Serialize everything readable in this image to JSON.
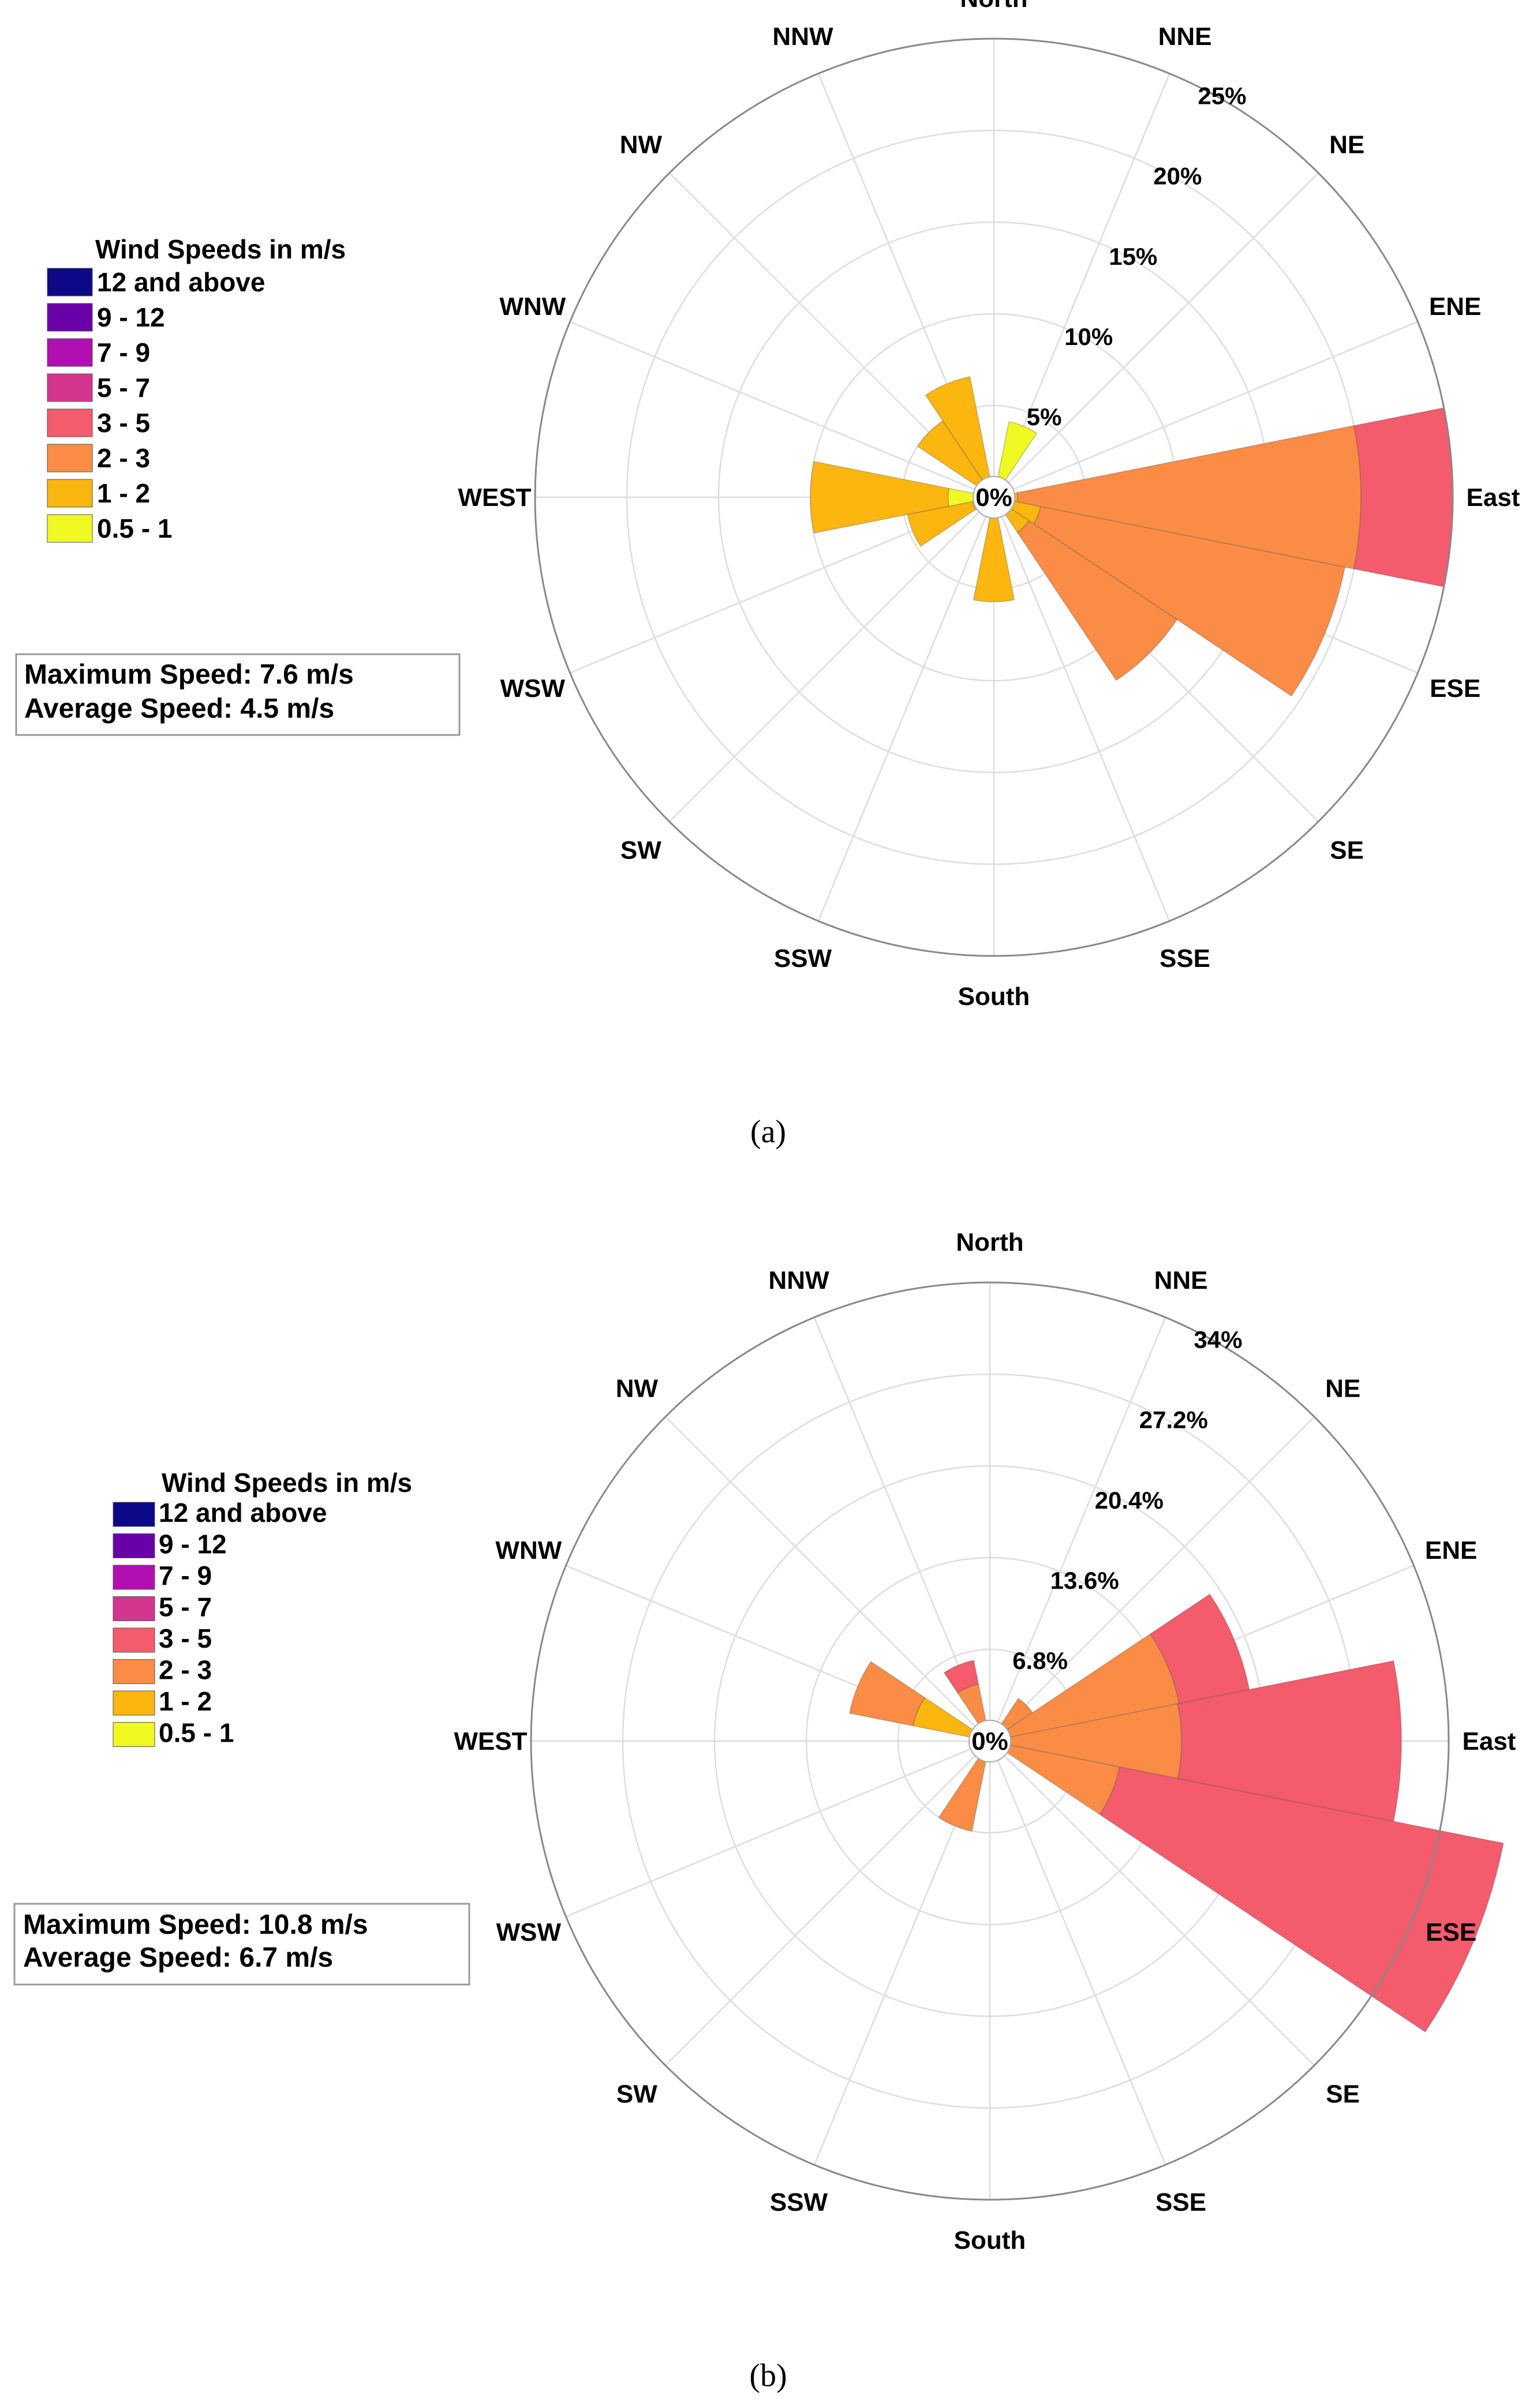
{
  "chart_data": [
    {
      "type": "wind-rose",
      "panel_label": "a",
      "caption": "(a)",
      "directions": [
        "North",
        "NNE",
        "NE",
        "ENE",
        "East",
        "ESE",
        "SE",
        "SSE",
        "South",
        "SSW",
        "SW",
        "WSW",
        "WEST",
        "WNW",
        "NW",
        "NNW"
      ],
      "direction_angles_deg": [
        0,
        22.5,
        45,
        67.5,
        90,
        112.5,
        135,
        157.5,
        180,
        202.5,
        225,
        247.5,
        270,
        292.5,
        315,
        337.5
      ],
      "radial_max": 25,
      "radial_ticks": [
        5,
        10,
        15,
        20,
        25
      ],
      "radial_tick_labels": [
        "5%",
        "10%",
        "15%",
        "20%",
        "25%"
      ],
      "center_label": "0%",
      "legend": {
        "title": "Wind Speeds in m/s",
        "bins": [
          {
            "label": "12 and above",
            "color": "#0d0887"
          },
          {
            "label": "9 - 12",
            "color": "#6a00a8"
          },
          {
            "label": "7 - 9",
            "color": "#b12a90"
          },
          {
            "label": "5 - 7",
            "color": "#e16462"
          },
          {
            "label": "3 - 5",
            "color": "#f2576a"
          },
          {
            "label": "2 - 3",
            "color": "#fb8c45"
          },
          {
            "label": "1 - 2",
            "color": "#fcb610"
          },
          {
            "label": "0.5 - 1",
            "color": "#f0f921"
          }
        ],
        "bin_colors_swatch": [
          "#0d0887",
          "#6a00a8",
          "#b10fb1",
          "#d3358f",
          "#f45b6c",
          "#fb8c45",
          "#fcb610",
          "#f0f921"
        ]
      },
      "stats": [
        "Maximum Speed: 7.6 m/s",
        "Average Speed: 4.5 m/s"
      ],
      "series_order": [
        "0.5 - 1",
        "1 - 2",
        "2 - 3",
        "3 - 5"
      ],
      "series_colors": [
        "#f0f921",
        "#fcb610",
        "#fb8c45",
        "#f45b6c"
      ],
      "bars": [
        {
          "dir": "North",
          "cumulative": [
            0,
            0,
            0,
            0
          ]
        },
        {
          "dir": "NNE",
          "cumulative": [
            4.2,
            4.2,
            4.2,
            4.2
          ]
        },
        {
          "dir": "NE",
          "cumulative": [
            0,
            0,
            0,
            0
          ]
        },
        {
          "dir": "ENE",
          "cumulative": [
            0,
            0,
            0,
            0
          ]
        },
        {
          "dir": "East",
          "cumulative": [
            0,
            1.3,
            20,
            25
          ]
        },
        {
          "dir": "ESE",
          "cumulative": [
            0,
            2.6,
            19.5,
            19.5
          ]
        },
        {
          "dir": "SE",
          "cumulative": [
            0,
            2.3,
            12,
            12
          ]
        },
        {
          "dir": "SSE",
          "cumulative": [
            0,
            0,
            0,
            0
          ]
        },
        {
          "dir": "South",
          "cumulative": [
            0,
            5.7,
            5.7,
            5.7
          ]
        },
        {
          "dir": "SSW",
          "cumulative": [
            0,
            0,
            0,
            0
          ]
        },
        {
          "dir": "SW",
          "cumulative": [
            0,
            0,
            0,
            0
          ]
        },
        {
          "dir": "WSW",
          "cumulative": [
            1.2,
            4.8,
            4.8,
            4.8
          ]
        },
        {
          "dir": "WEST",
          "cumulative": [
            2.5,
            10,
            10,
            10
          ]
        },
        {
          "dir": "WNW",
          "cumulative": [
            0,
            0,
            0,
            0
          ]
        },
        {
          "dir": "NW",
          "cumulative": [
            0,
            5,
            5,
            5
          ]
        },
        {
          "dir": "NNW",
          "cumulative": [
            0,
            6.7,
            6.7,
            6.7
          ]
        }
      ]
    },
    {
      "type": "wind-rose",
      "panel_label": "b",
      "caption": "(b)",
      "directions": [
        "North",
        "NNE",
        "NE",
        "ENE",
        "East",
        "ESE",
        "SE",
        "SSE",
        "South",
        "SSW",
        "SW",
        "WSW",
        "WEST",
        "WNW",
        "NW",
        "NNW"
      ],
      "direction_angles_deg": [
        0,
        22.5,
        45,
        67.5,
        90,
        112.5,
        135,
        157.5,
        180,
        202.5,
        225,
        247.5,
        270,
        292.5,
        315,
        337.5
      ],
      "radial_max": 34,
      "radial_ticks": [
        6.8,
        13.6,
        20.4,
        27.2,
        34
      ],
      "radial_tick_labels": [
        "6.8%",
        "13.6%",
        "20.4%",
        "27.2%",
        "34%"
      ],
      "center_label": "0%",
      "legend": {
        "title": "Wind Speeds in m/s",
        "bins": [
          {
            "label": "12 and above",
            "color": "#0d0887"
          },
          {
            "label": "9 - 12",
            "color": "#6a00a8"
          },
          {
            "label": "7 - 9",
            "color": "#b12a90"
          },
          {
            "label": "5 - 7",
            "color": "#e16462"
          },
          {
            "label": "3 - 5",
            "color": "#f2576a"
          },
          {
            "label": "2 - 3",
            "color": "#fb8c45"
          },
          {
            "label": "1 - 2",
            "color": "#fcb610"
          },
          {
            "label": "0.5 - 1",
            "color": "#f0f921"
          }
        ],
        "bin_colors_swatch": [
          "#0d0887",
          "#6a00a8",
          "#b10fb1",
          "#d3358f",
          "#f45b6c",
          "#fb8c45",
          "#fcb610",
          "#f0f921"
        ]
      },
      "stats": [
        "Maximum Speed: 10.8 m/s",
        "Average Speed: 6.7 m/s"
      ],
      "series_order": [
        "0.5 - 1",
        "1 - 2",
        "2 - 3",
        "3 - 5"
      ],
      "series_colors": [
        "#f0f921",
        "#fcb610",
        "#fb8c45",
        "#f45b6c"
      ],
      "bars": [
        {
          "dir": "North",
          "cumulative": [
            0,
            0,
            0,
            0
          ]
        },
        {
          "dir": "NNE",
          "cumulative": [
            0,
            0,
            0,
            0
          ]
        },
        {
          "dir": "NE",
          "cumulative": [
            0,
            0,
            3.8,
            3.8
          ]
        },
        {
          "dir": "ENE",
          "cumulative": [
            0,
            0,
            14.3,
            19.6
          ]
        },
        {
          "dir": "East",
          "cumulative": [
            0,
            0,
            14.2,
            30.5
          ]
        },
        {
          "dir": "ESE",
          "cumulative": [
            0,
            0,
            9.8,
            38.8
          ]
        },
        {
          "dir": "SE",
          "cumulative": [
            0,
            0,
            0,
            0
          ]
        },
        {
          "dir": "SSE",
          "cumulative": [
            0,
            0,
            0,
            0
          ]
        },
        {
          "dir": "South",
          "cumulative": [
            0,
            0,
            0,
            0
          ]
        },
        {
          "dir": "SSW",
          "cumulative": [
            0,
            0,
            6.8,
            6.8
          ]
        },
        {
          "dir": "SW",
          "cumulative": [
            0,
            0,
            0,
            0
          ]
        },
        {
          "dir": "WSW",
          "cumulative": [
            0,
            0,
            0,
            0
          ]
        },
        {
          "dir": "WEST",
          "cumulative": [
            0,
            0,
            0,
            0
          ]
        },
        {
          "dir": "WNW",
          "cumulative": [
            0,
            5.8,
            10.6,
            10.6
          ]
        },
        {
          "dir": "NW",
          "cumulative": [
            0,
            0,
            0,
            0
          ]
        },
        {
          "dir": "NNW",
          "cumulative": [
            0,
            0,
            4.3,
            6.1
          ]
        }
      ]
    }
  ]
}
